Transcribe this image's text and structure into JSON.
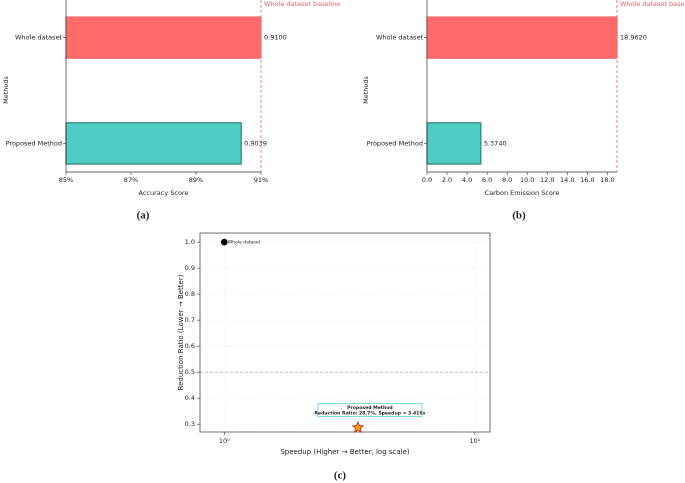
{
  "chart_data": [
    {
      "type": "bar",
      "orientation": "horizontal",
      "panel_label": "(a)",
      "categories": [
        "Whole dataset",
        "Proposed Method"
      ],
      "values": [
        0.91,
        0.9039
      ],
      "value_labels": [
        "0.9100",
        "0.9039"
      ],
      "colors": [
        "#ff6b6b",
        "#4ecdc4"
      ],
      "edgecolors": [
        "#ff6b6b",
        "#2f7f77"
      ],
      "xlim": [
        0.85,
        0.91
      ],
      "xticks": [
        {
          "value": 0.85,
          "label": "85%"
        },
        {
          "value": 0.87,
          "label": "87%"
        },
        {
          "value": 0.89,
          "label": "89%"
        },
        {
          "value": 0.91,
          "label": "91%"
        }
      ],
      "xlabel": "Accuracy Score",
      "ylabel": "Methods",
      "baseline": 0.91,
      "baseline_label": "Whole dataset baseline",
      "baseline_color": "#e06666"
    },
    {
      "type": "bar",
      "orientation": "horizontal",
      "panel_label": "(b)",
      "categories": [
        "Whole dataset",
        "Proposed Method"
      ],
      "values": [
        18.962,
        5.374
      ],
      "value_labels": [
        "18.9620",
        "5.3740"
      ],
      "colors": [
        "#ff6b6b",
        "#4ecdc4"
      ],
      "edgecolors": [
        "#ff6b6b",
        "#2f7f77"
      ],
      "xlim": [
        0,
        18.962
      ],
      "xticks": [
        {
          "value": 0,
          "label": "0.0"
        },
        {
          "value": 2,
          "label": "2.0"
        },
        {
          "value": 4,
          "label": "4.0"
        },
        {
          "value": 6,
          "label": "6.0"
        },
        {
          "value": 8,
          "label": "8.0"
        },
        {
          "value": 10,
          "label": "10.0"
        },
        {
          "value": 12,
          "label": "12.0"
        },
        {
          "value": 14,
          "label": "14.0"
        },
        {
          "value": 16,
          "label": "16.0"
        },
        {
          "value": 18,
          "label": "18.0"
        }
      ],
      "xlabel": "Carbon Emission Score",
      "ylabel": "Methods",
      "baseline": 18.962,
      "baseline_label": "Whole dataset baseline",
      "baseline_color": "#e06666"
    },
    {
      "type": "scatter",
      "panel_label": "(c)",
      "xscale": "log",
      "grid": true,
      "series": [
        {
          "name": "Whole dataset",
          "x": [
            1
          ],
          "values": [
            1.0
          ],
          "color": "#000000",
          "marker": "circle"
        },
        {
          "name": "Proposed Method",
          "x": [
            3.416
          ],
          "values": [
            0.287
          ],
          "color": "#ffa500",
          "edgecolor": "#d62728",
          "marker": "star"
        }
      ],
      "annotation": "Reduction Ratio: 28.7%, Speedup = 3.416x",
      "annotation_edgecolor": "#4ecdc4",
      "hline": 0.5,
      "hline_color": "#999999",
      "xlim": [
        0.8,
        11.5
      ],
      "xticks": [
        {
          "value": 1,
          "label": "10⁰"
        },
        {
          "value": 10,
          "label": "10¹"
        }
      ],
      "ylim": [
        0.27,
        1.035
      ],
      "yticks": [
        0.3,
        0.4,
        0.5,
        0.6,
        0.7,
        0.8,
        0.9,
        {
          "value": 1,
          "label": "1.0"
        }
      ],
      "xlabel": "Speedup (Higher → Better, log scale)",
      "ylabel": "Reduction Ratio (Lower → Better)"
    }
  ]
}
